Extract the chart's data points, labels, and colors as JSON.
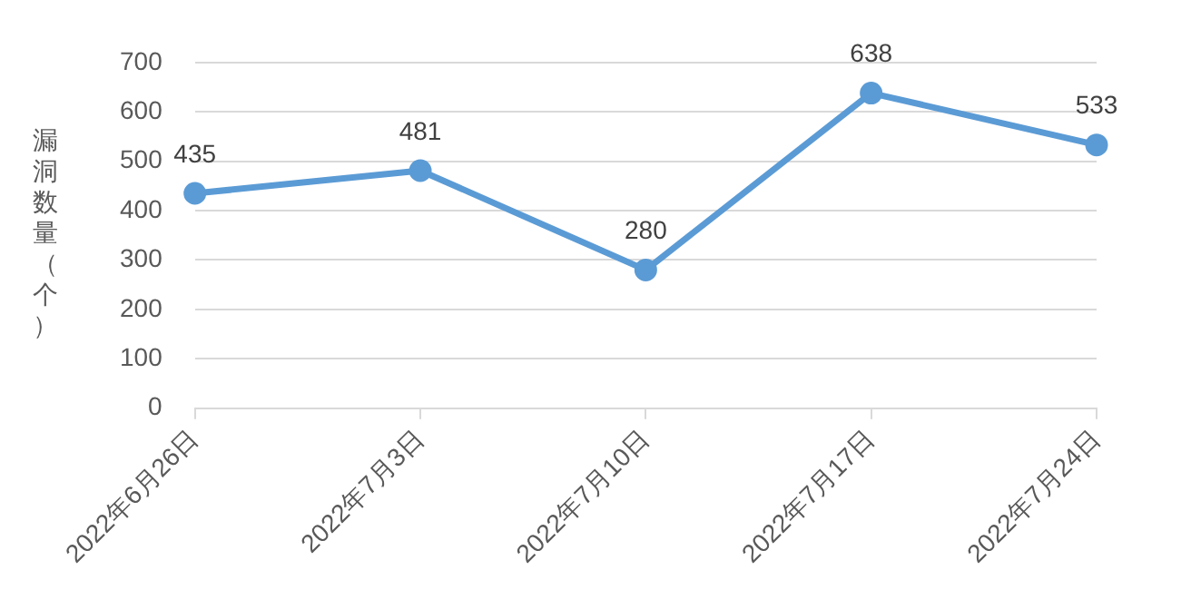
{
  "chart_data": {
    "type": "line",
    "ylabel": "漏洞数量（个）",
    "categories": [
      "2022年6月26日",
      "2022年7月3日",
      "2022年7月10日",
      "2022年7月17日",
      "2022年7月24日"
    ],
    "series": [
      {
        "color": "#5b9bd5",
        "values": [
          435,
          481,
          280,
          638,
          533
        ]
      }
    ],
    "ylim": [
      0,
      700
    ],
    "yticks": [
      0,
      100,
      200,
      300,
      400,
      500,
      600,
      700
    ],
    "grid": "y",
    "marker": "circle",
    "line_style": "solid",
    "data_labels": true,
    "legend": false
  }
}
